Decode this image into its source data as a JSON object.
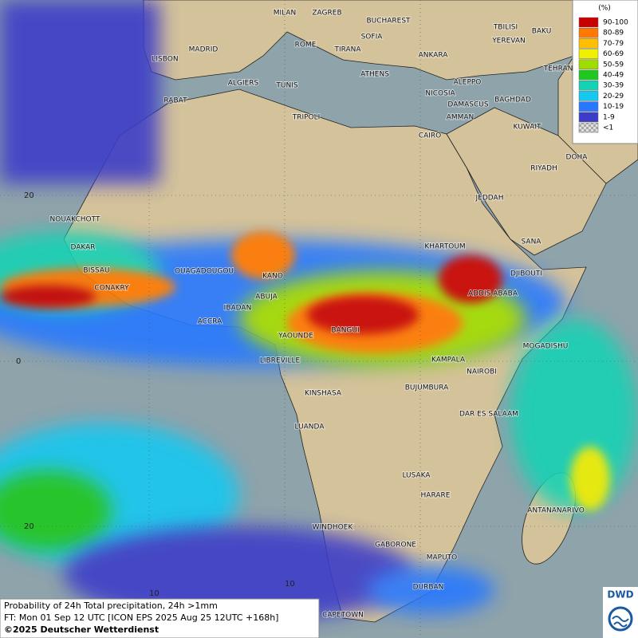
{
  "legend": {
    "title": "(%)",
    "entries": [
      {
        "label": "90-100",
        "color": "#c80000"
      },
      {
        "label": "80-89",
        "color": "#ff7800"
      },
      {
        "label": "70-79",
        "color": "#ffbe00"
      },
      {
        "label": "60-69",
        "color": "#f0f000"
      },
      {
        "label": "50-59",
        "color": "#a0dc00"
      },
      {
        "label": "40-49",
        "color": "#1ec81e"
      },
      {
        "label": "30-39",
        "color": "#14d2b4"
      },
      {
        "label": "20-29",
        "color": "#14c8f0"
      },
      {
        "label": "10-19",
        "color": "#2878ff"
      },
      {
        "label": "1-9",
        "color": "#3c3cc8"
      },
      {
        "label": "<1",
        "color": "checker"
      }
    ]
  },
  "cities": [
    "MILAN",
    "ZAGREB",
    "BUCHAREST",
    "TBILISI",
    "BAKU",
    "MADRID",
    "ROME",
    "SOFIA",
    "YEREVAN",
    "LISBON",
    "TIRANA",
    "ANKARA",
    "TEHRAN",
    "ATHENS",
    "ALGIERS",
    "TUNIS",
    "ALEPPO",
    "RABAT",
    "NICOSIA",
    "BAGHDAD",
    "TRIPOLI",
    "DAMASCUS",
    "AMMAN",
    "KUWAIT",
    "CAIRO",
    "DOHA",
    "RIYADH",
    "JEDDAH",
    "NOUAKCHOTT",
    "SANA",
    "DAKAR",
    "KHARTOUM",
    "DJIBOUTI",
    "BISSAU",
    "OUAGADOUGOU",
    "KANO",
    "CONAKRY",
    "ABUJA",
    "ADDIS ABABA",
    "IBADAN",
    "ACCRA",
    "BANGUI",
    "YAOUNDE",
    "MOGADISHU",
    "KAMPALA",
    "LIBREVILLE",
    "NAIROBI",
    "KINSHASA",
    "BUJUMBURA",
    "DAR ES SALAAM",
    "LUANDA",
    "LUSAKA",
    "HARARE",
    "ANTANANARIVO",
    "WINDHOEK",
    "GABORONE",
    "MAPUTO",
    "DURBAN",
    "CAPETOWN"
  ],
  "grid_labels": [
    "20",
    "0",
    "20",
    "10",
    "10"
  ],
  "caption": {
    "line1": "Probability of 24h Total precipitation, 24h >1mm",
    "line2": "FT: Mon 01 Sep 12 UTC [ICON EPS 2025 Aug 25 12UTC +168h]",
    "copyright": "©2025 Deutscher Wetterdienst"
  },
  "logo": "DWD"
}
